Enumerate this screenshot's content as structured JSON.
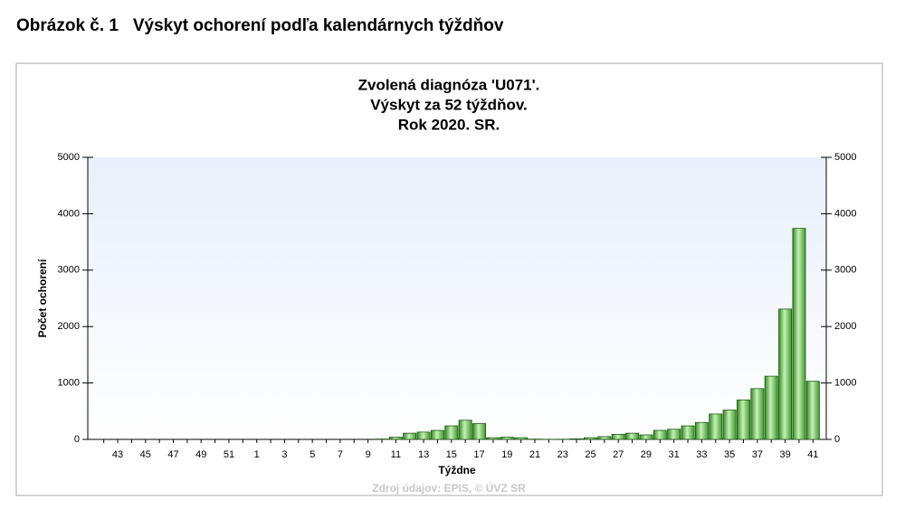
{
  "heading": "Obrázok č. 1   Výskyt ochorení podľa kalendárnych týždňov",
  "chart_data": {
    "type": "bar",
    "title": [
      "Zvolená diagnóza 'U071'.",
      "Výskyt za 52 týždňov.",
      "Rok 2020. SR."
    ],
    "x_label": "Týždne",
    "y_label": "Počet ochorení",
    "source": "Zdroj údajov: EPIS, © ÚVZ SR",
    "categories": [
      null,
      "43",
      null,
      "45",
      null,
      "47",
      null,
      "49",
      null,
      "51",
      null,
      "1",
      null,
      "3",
      null,
      "5",
      null,
      "7",
      null,
      "9",
      null,
      "11",
      null,
      "13",
      null,
      "15",
      null,
      "17",
      null,
      "19",
      null,
      "21",
      null,
      "23",
      null,
      "25",
      null,
      "27",
      null,
      "29",
      null,
      "31",
      null,
      "33",
      null,
      "35",
      null,
      "37",
      null,
      "39",
      null,
      "41"
    ],
    "values": [
      0,
      0,
      0,
      0,
      0,
      0,
      0,
      0,
      0,
      0,
      0,
      0,
      0,
      0,
      0,
      0,
      0,
      0,
      0,
      0,
      7,
      40,
      110,
      130,
      160,
      240,
      340,
      280,
      30,
      40,
      30,
      5,
      2,
      3,
      10,
      30,
      50,
      90,
      110,
      80,
      160,
      180,
      240,
      300,
      450,
      520,
      700,
      900,
      1120,
      2310,
      3740,
      1030
    ],
    "color": "#4caf3a",
    "ylim": [
      0,
      5000
    ],
    "yticks": [
      0,
      1000,
      2000,
      3000,
      4000,
      5000
    ],
    "y2lim": [
      0,
      5000
    ],
    "y2ticks": [
      0,
      1000,
      2000,
      3000,
      4000,
      5000
    ]
  }
}
